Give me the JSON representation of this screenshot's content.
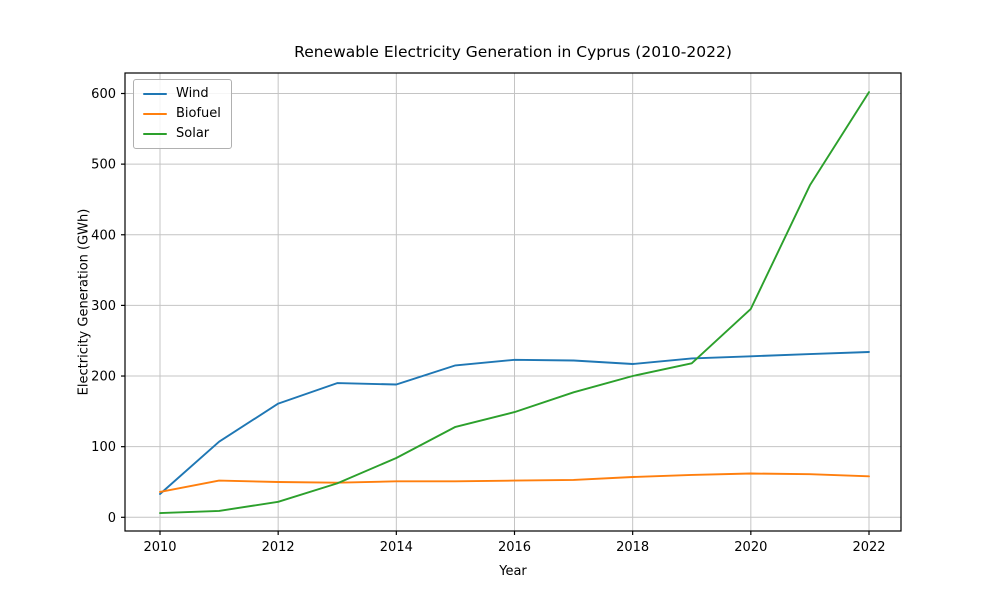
{
  "chart_data": {
    "type": "line",
    "title": "Renewable Electricity Generation in Cyprus (2010-2022)",
    "xlabel": "Year",
    "ylabel": "Electricity Generation (GWh)",
    "x": [
      2010,
      2011,
      2012,
      2013,
      2014,
      2015,
      2016,
      2017,
      2018,
      2019,
      2020,
      2021,
      2022
    ],
    "series": [
      {
        "name": "Wind",
        "color": "#1f77b4",
        "values": [
          33,
          107,
          161,
          190,
          188,
          215,
          223,
          222,
          217,
          225,
          228,
          231,
          234
        ]
      },
      {
        "name": "Biofuel",
        "color": "#ff7f0e",
        "values": [
          36,
          52,
          50,
          49,
          51,
          51,
          52,
          53,
          57,
          60,
          62,
          61,
          58
        ]
      },
      {
        "name": "Solar",
        "color": "#2ca02c",
        "values": [
          6,
          9,
          22,
          48,
          84,
          128,
          149,
          177,
          200,
          218,
          295,
          470,
          602
        ]
      }
    ],
    "x_ticks": [
      2010,
      2012,
      2014,
      2016,
      2018,
      2020,
      2022
    ],
    "y_ticks": [
      0,
      100,
      200,
      300,
      400,
      500,
      600
    ],
    "xlim": [
      2010,
      2022
    ],
    "ylim": [
      0,
      600
    ],
    "grid": true,
    "legend_position": "upper left",
    "grid_color": "#c4c4c4",
    "spine_color": "#000000",
    "background_color": "#ffffff"
  }
}
